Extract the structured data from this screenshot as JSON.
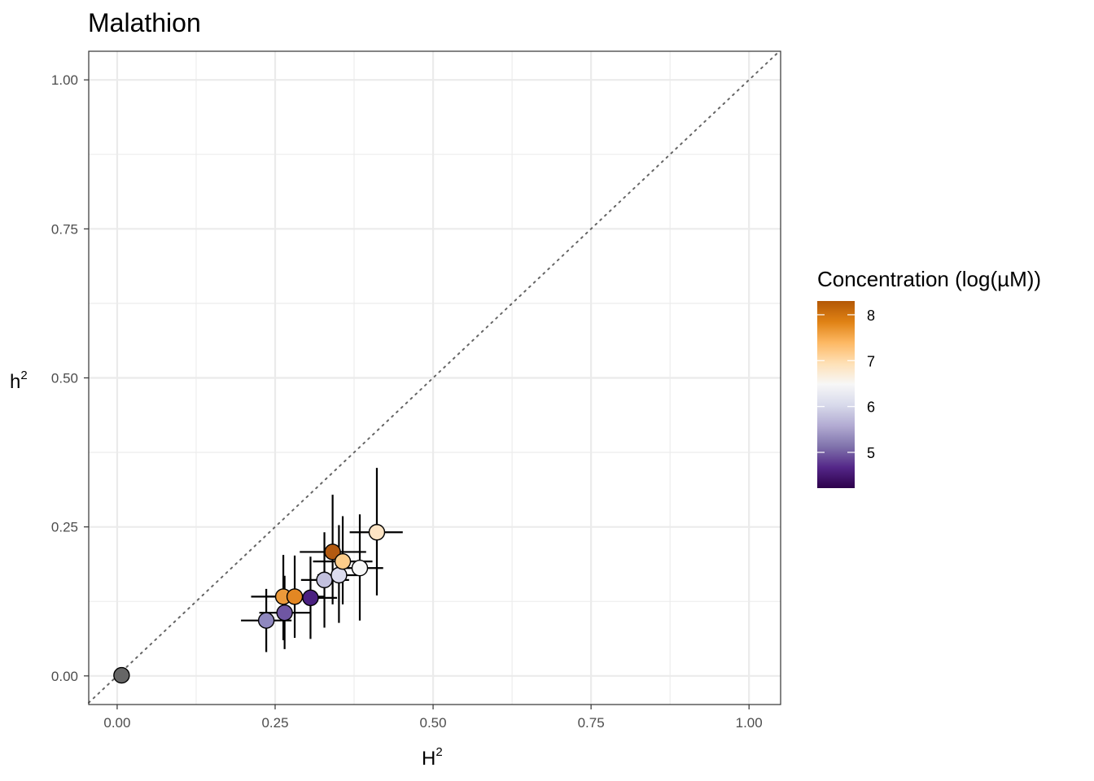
{
  "chart_data": {
    "type": "scatter",
    "title": "Malathion",
    "xlabel": {
      "base": "H",
      "superscript": "2"
    },
    "ylabel": {
      "base": "h",
      "superscript": "2"
    },
    "xlim": [
      -0.045,
      1.05
    ],
    "ylim": [
      -0.048,
      1.048
    ],
    "x_ticks": [
      0.0,
      0.25,
      0.5,
      0.75,
      1.0
    ],
    "x_tick_labels": [
      "0.00",
      "0.25",
      "0.50",
      "0.75",
      "1.00"
    ],
    "y_ticks": [
      0.0,
      0.25,
      0.5,
      0.75,
      1.0
    ],
    "y_tick_labels": [
      "0.00",
      "0.25",
      "0.50",
      "0.75",
      "1.00"
    ],
    "grid": true,
    "reference_line": {
      "style": "dotted",
      "color": "#666666",
      "slope": 1,
      "intercept": 0
    },
    "colorbar": {
      "title": "Concentration (log(µM))",
      "range": [
        4.22,
        8.3
      ],
      "ticks": [
        5,
        6,
        7,
        8
      ],
      "tick_labels": [
        "5",
        "6",
        "7",
        "8"
      ],
      "colors": [
        "#2d004b",
        "#542788",
        "#8073ac",
        "#b2abd2",
        "#d8daeb",
        "#f7f7f7",
        "#fee0b6",
        "#fdb863",
        "#e08214",
        "#b35806"
      ]
    },
    "points": [
      {
        "x": 0.007,
        "y": 0.001,
        "xmin": 0.007,
        "xmax": 0.007,
        "ymin": 0.001,
        "ymax": 0.001,
        "color": "#666666"
      },
      {
        "x": 0.236,
        "y": 0.093,
        "xmin": 0.196,
        "xmax": 0.276,
        "ymin": 0.04,
        "ymax": 0.146,
        "color": "#8f88bf"
      },
      {
        "x": 0.265,
        "y": 0.106,
        "xmin": 0.225,
        "xmax": 0.307,
        "ymin": 0.045,
        "ymax": 0.168,
        "color": "#6f56a3"
      },
      {
        "x": 0.263,
        "y": 0.133,
        "xmin": 0.212,
        "xmax": 0.303,
        "ymin": 0.06,
        "ymax": 0.203,
        "color": "#ec9a3b"
      },
      {
        "x": 0.281,
        "y": 0.133,
        "xmin": 0.234,
        "xmax": 0.327,
        "ymin": 0.064,
        "ymax": 0.202,
        "color": "#e38723"
      },
      {
        "x": 0.306,
        "y": 0.131,
        "xmin": 0.266,
        "xmax": 0.348,
        "ymin": 0.062,
        "ymax": 0.2,
        "color": "#4a2080"
      },
      {
        "x": 0.328,
        "y": 0.161,
        "xmin": 0.291,
        "xmax": 0.367,
        "ymin": 0.081,
        "ymax": 0.241,
        "color": "#c2c0dd"
      },
      {
        "x": 0.341,
        "y": 0.208,
        "xmin": 0.289,
        "xmax": 0.394,
        "ymin": 0.12,
        "ymax": 0.304,
        "color": "#b35a10"
      },
      {
        "x": 0.351,
        "y": 0.169,
        "xmin": 0.317,
        "xmax": 0.386,
        "ymin": 0.089,
        "ymax": 0.253,
        "color": "#dcdcee"
      },
      {
        "x": 0.357,
        "y": 0.192,
        "xmin": 0.31,
        "xmax": 0.404,
        "ymin": 0.12,
        "ymax": 0.268,
        "color": "#fccd8a"
      },
      {
        "x": 0.384,
        "y": 0.181,
        "xmin": 0.348,
        "xmax": 0.421,
        "ymin": 0.093,
        "ymax": 0.271,
        "color": "#f7f7f7"
      },
      {
        "x": 0.411,
        "y": 0.241,
        "xmin": 0.368,
        "xmax": 0.452,
        "ymin": 0.135,
        "ymax": 0.349,
        "color": "#fde4c4"
      }
    ]
  }
}
